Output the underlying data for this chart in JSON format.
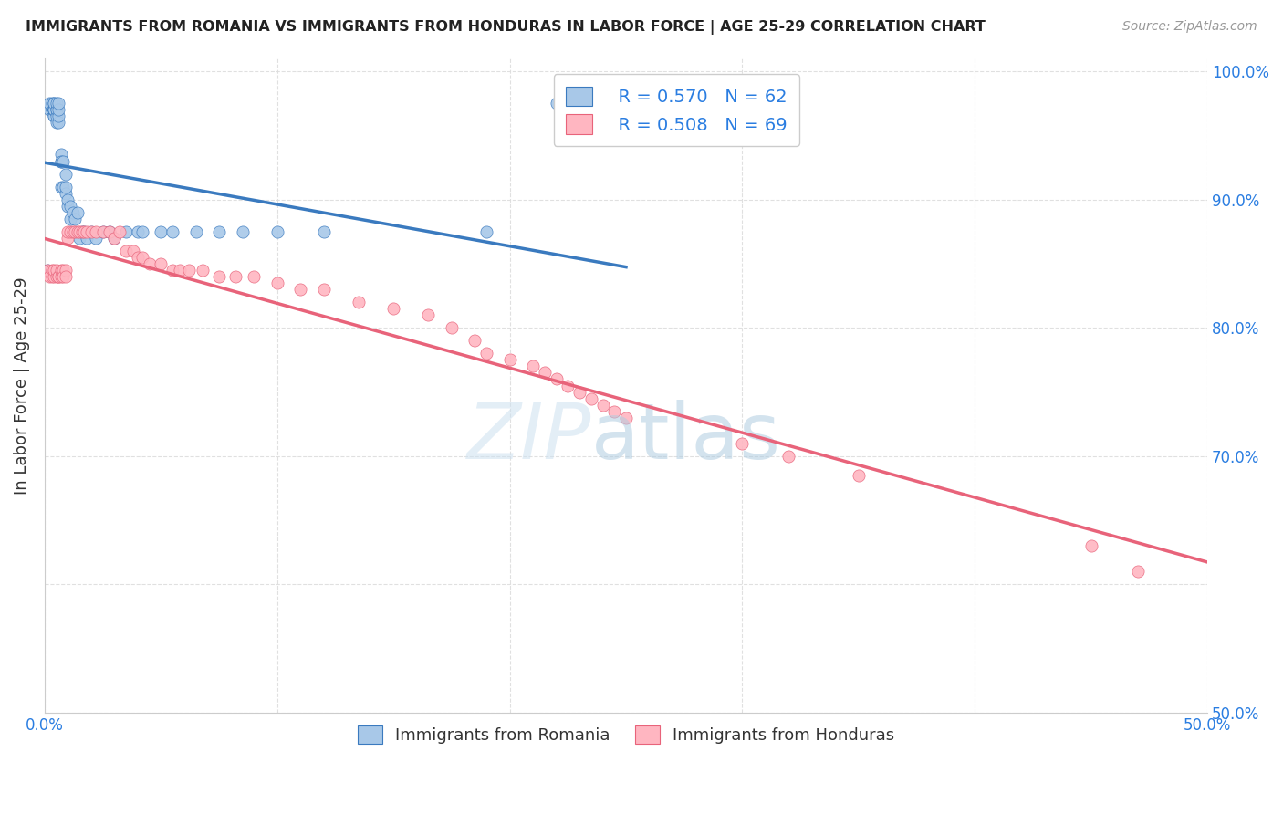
{
  "title": "IMMIGRANTS FROM ROMANIA VS IMMIGRANTS FROM HONDURAS IN LABOR FORCE | AGE 25-29 CORRELATION CHART",
  "source": "Source: ZipAtlas.com",
  "ylabel": "In Labor Force | Age 25-29",
  "xlim": [
    0.0,
    0.5
  ],
  "ylim": [
    0.5,
    1.01
  ],
  "xticks": [
    0.0,
    0.1,
    0.2,
    0.3,
    0.4,
    0.5
  ],
  "yticks": [
    0.5,
    0.6,
    0.7,
    0.8,
    0.9,
    1.0
  ],
  "romania_color": "#a8c8e8",
  "honduras_color": "#ffb6c1",
  "romania_line_color": "#3a7abf",
  "honduras_line_color": "#e8637a",
  "legend_R_romania": "R = 0.570",
  "legend_N_romania": "N = 62",
  "legend_R_honduras": "R = 0.508",
  "legend_N_honduras": "N = 69",
  "romania_x": [
    0.001,
    0.002,
    0.002,
    0.003,
    0.003,
    0.003,
    0.004,
    0.004,
    0.004,
    0.004,
    0.004,
    0.004,
    0.004,
    0.004,
    0.004,
    0.004,
    0.005,
    0.005,
    0.005,
    0.005,
    0.005,
    0.006,
    0.006,
    0.006,
    0.006,
    0.007,
    0.007,
    0.007,
    0.007,
    0.008,
    0.008,
    0.009,
    0.009,
    0.009,
    0.01,
    0.01,
    0.011,
    0.011,
    0.012,
    0.013,
    0.014,
    0.015,
    0.016,
    0.017,
    0.018,
    0.02,
    0.022,
    0.025,
    0.028,
    0.03,
    0.035,
    0.04,
    0.042,
    0.05,
    0.055,
    0.065,
    0.075,
    0.085,
    0.1,
    0.12,
    0.19,
    0.22
  ],
  "romania_y": [
    0.845,
    0.97,
    0.975,
    0.97,
    0.97,
    0.975,
    0.97,
    0.965,
    0.97,
    0.975,
    0.965,
    0.97,
    0.97,
    0.97,
    0.97,
    0.975,
    0.96,
    0.965,
    0.97,
    0.97,
    0.975,
    0.96,
    0.965,
    0.97,
    0.975,
    0.93,
    0.935,
    0.93,
    0.91,
    0.91,
    0.93,
    0.92,
    0.905,
    0.91,
    0.895,
    0.9,
    0.895,
    0.885,
    0.89,
    0.885,
    0.89,
    0.87,
    0.875,
    0.875,
    0.87,
    0.875,
    0.87,
    0.875,
    0.875,
    0.87,
    0.875,
    0.875,
    0.875,
    0.875,
    0.875,
    0.875,
    0.875,
    0.875,
    0.875,
    0.875,
    0.875,
    0.975
  ],
  "honduras_x": [
    0.001,
    0.002,
    0.003,
    0.003,
    0.004,
    0.004,
    0.005,
    0.005,
    0.006,
    0.006,
    0.007,
    0.007,
    0.008,
    0.008,
    0.009,
    0.009,
    0.01,
    0.01,
    0.011,
    0.012,
    0.013,
    0.014,
    0.015,
    0.016,
    0.017,
    0.018,
    0.02,
    0.022,
    0.025,
    0.028,
    0.03,
    0.032,
    0.035,
    0.038,
    0.04,
    0.042,
    0.045,
    0.05,
    0.055,
    0.058,
    0.062,
    0.068,
    0.075,
    0.082,
    0.09,
    0.1,
    0.11,
    0.12,
    0.135,
    0.15,
    0.165,
    0.175,
    0.185,
    0.19,
    0.2,
    0.21,
    0.215,
    0.22,
    0.225,
    0.23,
    0.235,
    0.24,
    0.245,
    0.25,
    0.3,
    0.32,
    0.35,
    0.45,
    0.47
  ],
  "honduras_y": [
    0.845,
    0.84,
    0.845,
    0.84,
    0.84,
    0.845,
    0.84,
    0.845,
    0.84,
    0.84,
    0.84,
    0.845,
    0.845,
    0.84,
    0.845,
    0.84,
    0.87,
    0.875,
    0.875,
    0.875,
    0.875,
    0.875,
    0.875,
    0.875,
    0.875,
    0.875,
    0.875,
    0.875,
    0.875,
    0.875,
    0.87,
    0.875,
    0.86,
    0.86,
    0.855,
    0.855,
    0.85,
    0.85,
    0.845,
    0.845,
    0.845,
    0.845,
    0.84,
    0.84,
    0.84,
    0.835,
    0.83,
    0.83,
    0.82,
    0.815,
    0.81,
    0.8,
    0.79,
    0.78,
    0.775,
    0.77,
    0.765,
    0.76,
    0.755,
    0.75,
    0.745,
    0.74,
    0.735,
    0.73,
    0.71,
    0.7,
    0.685,
    0.63,
    0.61
  ]
}
